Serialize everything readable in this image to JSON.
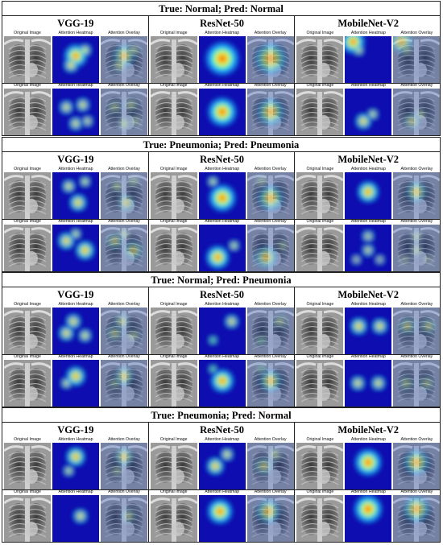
{
  "captions": {
    "original": "Original Image",
    "heatmap": "Attention Heatmap",
    "overlay": "Attention Overlay"
  },
  "models": [
    "VGG-19",
    "ResNet-50",
    "MobileNet-V2"
  ],
  "sections": [
    {
      "title": "True: Normal; Pred: Normal",
      "rows": [
        [
          {
            "blobs": [
              [
                0.5,
                0.42,
                0.22,
                0.95
              ],
              [
                0.4,
                0.62,
                0.14,
                0.7
              ],
              [
                0.7,
                0.3,
                0.12,
                0.6
              ]
            ]
          },
          {
            "blobs": [
              [
                0.5,
                0.48,
                0.34,
                0.9
              ]
            ]
          },
          {
            "blobs": [
              [
                0.18,
                0.12,
                0.22,
                1.0
              ],
              [
                0.3,
                0.3,
                0.1,
                0.5
              ]
            ]
          }
        ],
        [
          {
            "blobs": [
              [
                0.3,
                0.4,
                0.12,
                0.85
              ],
              [
                0.65,
                0.35,
                0.12,
                0.85
              ],
              [
                0.5,
                0.75,
                0.12,
                0.8
              ],
              [
                0.75,
                0.7,
                0.1,
                0.7
              ]
            ]
          },
          {
            "blobs": [
              [
                0.5,
                0.5,
                0.3,
                0.8
              ]
            ]
          },
          {
            "blobs": [
              [
                0.4,
                0.7,
                0.14,
                0.95
              ],
              [
                0.6,
                0.55,
                0.1,
                0.6
              ]
            ]
          }
        ]
      ]
    },
    {
      "title": "True: Pneumonia; Pred: Pneumonia",
      "rows": [
        [
          {
            "blobs": [
              [
                0.35,
                0.3,
                0.12,
                0.75
              ],
              [
                0.55,
                0.65,
                0.16,
                0.85
              ],
              [
                0.7,
                0.2,
                0.1,
                0.6
              ]
            ]
          },
          {
            "blobs": [
              [
                0.5,
                0.55,
                0.28,
                0.8
              ],
              [
                0.3,
                0.2,
                0.1,
                0.5
              ]
            ]
          },
          {
            "blobs": [
              [
                0.5,
                0.42,
                0.2,
                0.95
              ]
            ]
          }
        ],
        [
          {
            "blobs": [
              [
                0.3,
                0.35,
                0.16,
                0.8
              ],
              [
                0.7,
                0.55,
                0.18,
                0.85
              ],
              [
                0.5,
                0.2,
                0.1,
                0.6
              ]
            ]
          },
          {
            "blobs": [
              [
                0.4,
                0.7,
                0.22,
                0.95
              ],
              [
                0.75,
                0.45,
                0.1,
                0.5
              ]
            ]
          },
          {
            "blobs": [
              [
                0.5,
                0.25,
                0.1,
                0.85
              ],
              [
                0.5,
                0.55,
                0.1,
                0.9
              ],
              [
                0.25,
                0.75,
                0.08,
                0.7
              ],
              [
                0.75,
                0.75,
                0.08,
                0.7
              ]
            ]
          }
        ]
      ]
    },
    {
      "title": "True: Normal; Pred: Pneumonia",
      "rows": [
        [
          {
            "blobs": [
              [
                0.45,
                0.3,
                0.14,
                0.8
              ],
              [
                0.3,
                0.55,
                0.14,
                0.8
              ],
              [
                0.7,
                0.6,
                0.12,
                0.7
              ]
            ]
          },
          {
            "blobs": [
              [
                0.7,
                0.3,
                0.12,
                0.85
              ],
              [
                0.3,
                0.7,
                0.08,
                0.4
              ]
            ]
          },
          {
            "blobs": [
              [
                0.3,
                0.4,
                0.16,
                0.8
              ],
              [
                0.75,
                0.4,
                0.14,
                0.85
              ]
            ]
          }
        ],
        [
          {
            "blobs": [
              [
                0.5,
                0.35,
                0.18,
                0.95
              ],
              [
                0.3,
                0.5,
                0.1,
                0.6
              ]
            ]
          },
          {
            "blobs": [
              [
                0.5,
                0.45,
                0.22,
                0.95
              ],
              [
                0.3,
                0.2,
                0.08,
                0.4
              ]
            ]
          },
          {
            "blobs": [
              [
                0.28,
                0.5,
                0.12,
                0.95
              ],
              [
                0.72,
                0.5,
                0.12,
                0.95
              ]
            ]
          }
        ]
      ]
    },
    {
      "title": "True: Pneumonia; Pred: Normal",
      "rows": [
        [
          {
            "blobs": [
              [
                0.5,
                0.3,
                0.18,
                0.9
              ],
              [
                0.35,
                0.6,
                0.1,
                0.5
              ]
            ]
          },
          {
            "blobs": [
              [
                0.35,
                0.5,
                0.16,
                0.9
              ],
              [
                0.6,
                0.25,
                0.12,
                0.7
              ]
            ]
          },
          {
            "blobs": [
              [
                0.5,
                0.42,
                0.26,
                0.95
              ]
            ]
          }
        ],
        [
          {
            "blobs": [
              [
                0.6,
                0.45,
                0.12,
                0.95
              ]
            ]
          },
          {
            "blobs": [
              [
                0.45,
                0.35,
                0.24,
                0.95
              ]
            ]
          },
          {
            "blobs": [
              [
                0.5,
                0.3,
                0.28,
                0.9
              ]
            ]
          }
        ]
      ]
    }
  ]
}
